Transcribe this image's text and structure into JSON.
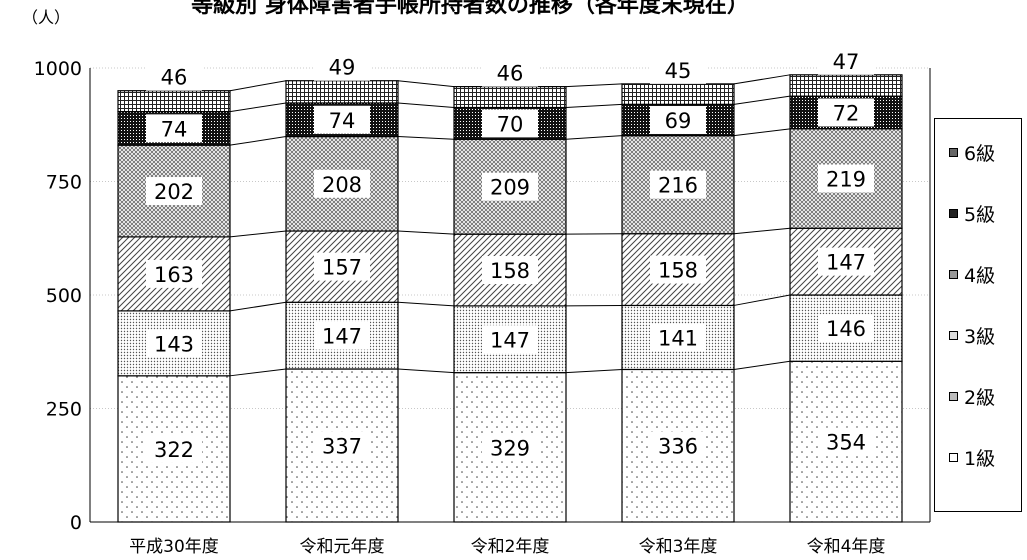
{
  "chart_data": {
    "type": "bar",
    "stacked": true,
    "title": "等級別 身体障害者手帳所持者数の推移（各年度末現在）",
    "ylabel_unit": "（人）",
    "ylim": [
      0,
      1000
    ],
    "yticks": [
      0,
      250,
      500,
      750,
      1000
    ],
    "grid": true,
    "legend_position": "right",
    "categories": [
      "平成30年度",
      "令和元年度",
      "令和2年度",
      "令和3年度",
      "令和4年度"
    ],
    "series": [
      {
        "name": "1級",
        "values": [
          322,
          337,
          329,
          336,
          354
        ]
      },
      {
        "name": "2級",
        "values": [
          143,
          147,
          147,
          141,
          146
        ]
      },
      {
        "name": "3級",
        "values": [
          163,
          157,
          158,
          158,
          147
        ]
      },
      {
        "name": "4級",
        "values": [
          202,
          208,
          209,
          216,
          219
        ]
      },
      {
        "name": "5級",
        "values": [
          74,
          74,
          70,
          69,
          72
        ]
      },
      {
        "name": "6級",
        "values": [
          46,
          49,
          46,
          45,
          47
        ]
      }
    ]
  }
}
